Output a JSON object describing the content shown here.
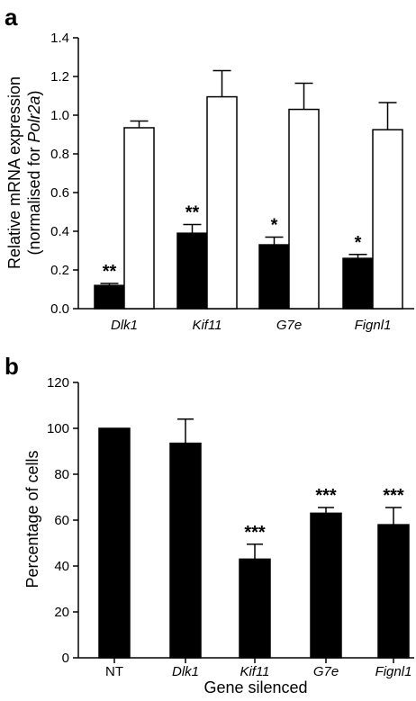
{
  "chart_data": [
    {
      "panel_label": "a",
      "type": "bar",
      "categories": [
        "Dlk1",
        "Kif11",
        "G7e",
        "Fignl1"
      ],
      "series": [
        {
          "fill": "#000000",
          "values": [
            0.12,
            0.39,
            0.33,
            0.26
          ],
          "errors": [
            0.01,
            0.045,
            0.04,
            0.02
          ]
        },
        {
          "fill": "#ffffff",
          "values": [
            0.935,
            1.095,
            1.03,
            0.925
          ],
          "errors": [
            0.035,
            0.135,
            0.135,
            0.14
          ]
        }
      ],
      "significance": [
        "**",
        "**",
        "*",
        "*"
      ],
      "ylabel_line1": "Relative mRNA expression",
      "ylabel_line2_prefix": "(normalised for ",
      "ylabel_line2_italic": "Polr2a",
      "ylabel_line2_suffix": ")",
      "xlabel": "",
      "ylim": [
        0,
        1.4
      ],
      "yticks": [
        "0.0",
        "0.2",
        "0.4",
        "0.6",
        "0.8",
        "1.0",
        "1.2",
        "1.4"
      ],
      "grid": false
    },
    {
      "panel_label": "b",
      "type": "bar",
      "categories": [
        "NT",
        "Dlk1",
        "Kif11",
        "G7e",
        "Fignl1"
      ],
      "italic_categories": [
        false,
        true,
        true,
        true,
        true
      ],
      "series": [
        {
          "fill": "#000000",
          "values": [
            100,
            93.5,
            43,
            63,
            58
          ],
          "errors": [
            0,
            10.5,
            6.5,
            2.5,
            7.5
          ]
        }
      ],
      "significance": [
        "",
        "",
        "***",
        "***",
        "***"
      ],
      "ylabel": "Percentage of cells",
      "xlabel": "Gene silenced",
      "ylim": [
        0,
        120
      ],
      "yticks": [
        "0",
        "20",
        "40",
        "60",
        "80",
        "100",
        "120"
      ],
      "grid": false
    }
  ]
}
